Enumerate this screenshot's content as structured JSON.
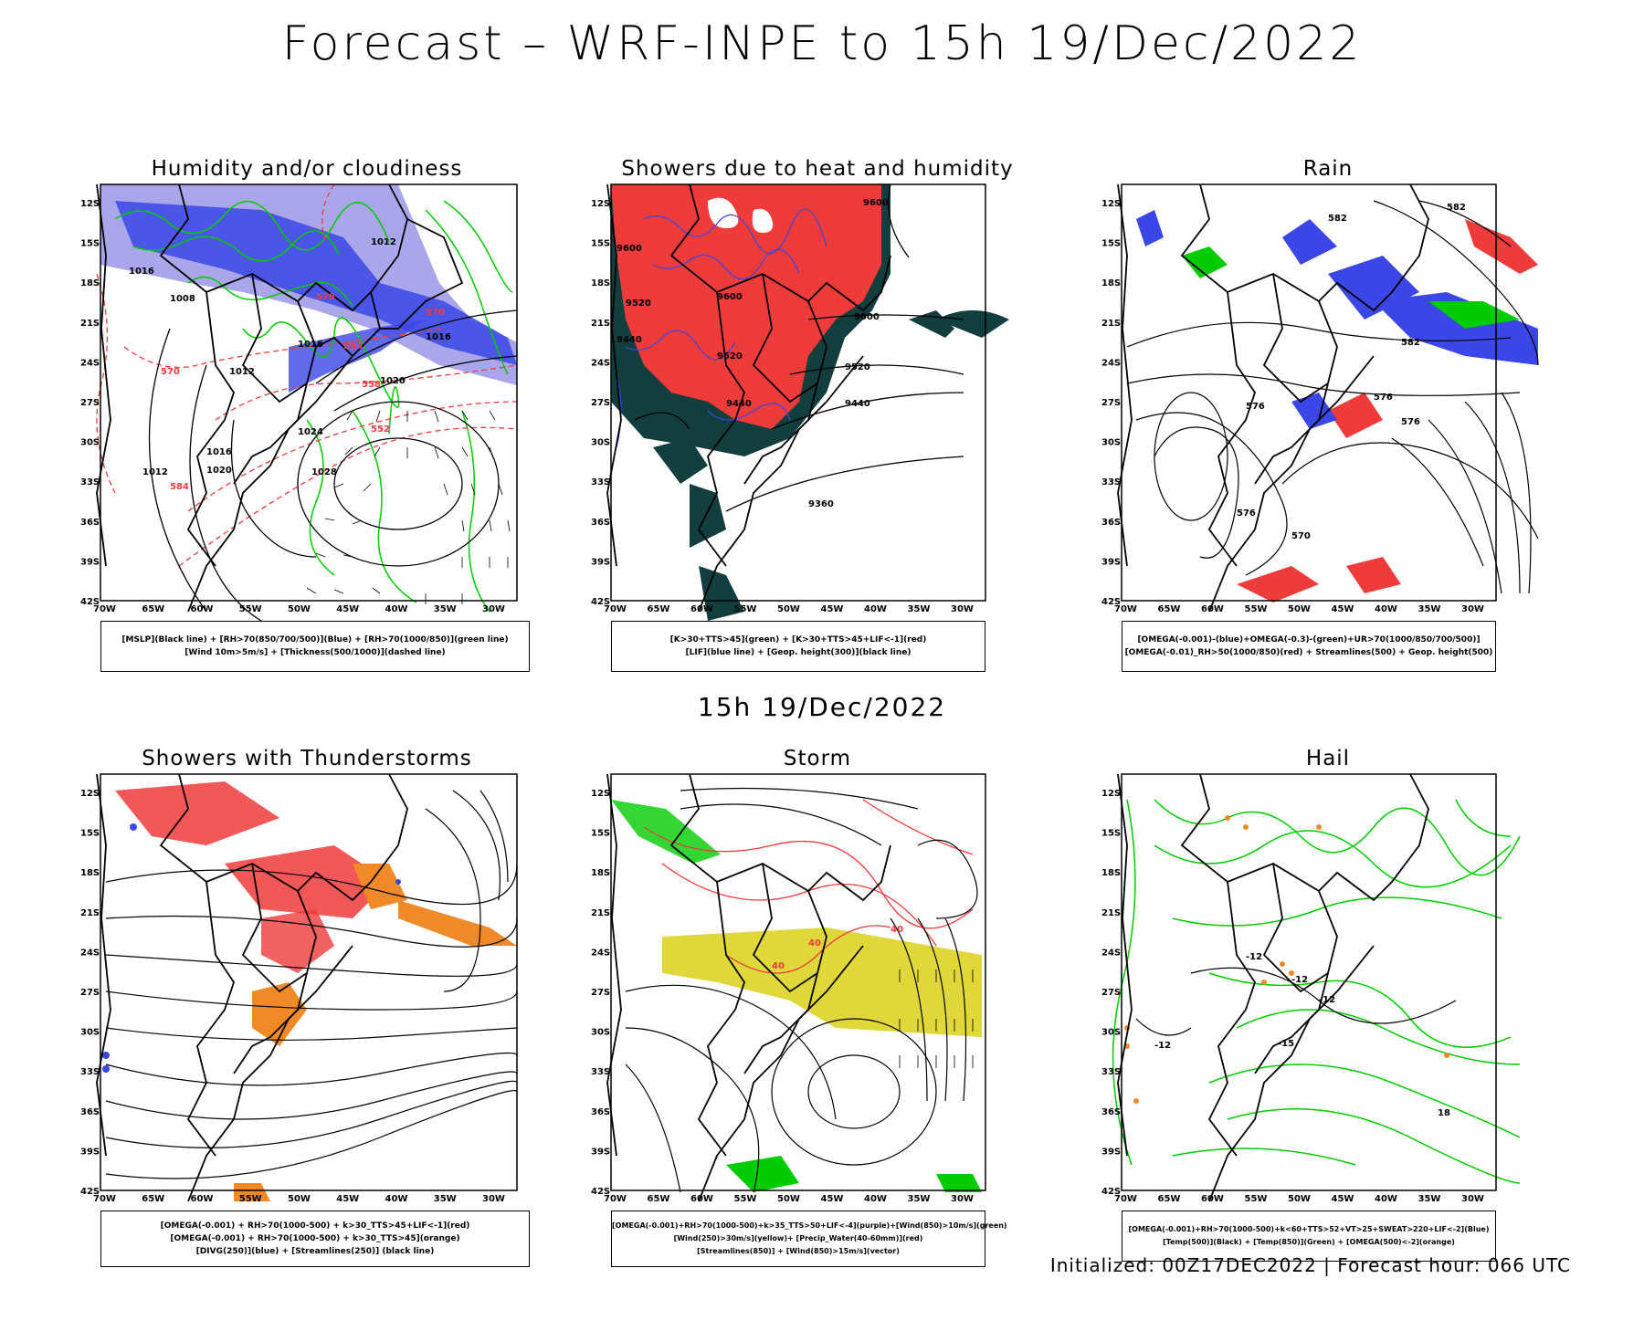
{
  "header": {
    "title": "Forecast – WRF-INPE to 15h 19/Dec/2022"
  },
  "mid_header": {
    "title": "15h 19/Dec/2022"
  },
  "footer": {
    "text": "Initialized: 00Z17DEC2022 | Forecast hour: 066 UTC"
  },
  "axes": {
    "lat_labels": [
      "12S",
      "15S",
      "18S",
      "21S",
      "24S",
      "27S",
      "30S",
      "33S",
      "36S",
      "39S",
      "42S"
    ],
    "lon_labels": [
      "70W",
      "65W",
      "60W",
      "55W",
      "50W",
      "45W",
      "40W",
      "35W",
      "30W"
    ]
  },
  "colors": {
    "blue": "#3b46e6",
    "lightblue": "#a9a6ec",
    "green": "#00cc00",
    "red": "#f03b3b",
    "darkteal": "#123e3e",
    "orange": "#f08a28",
    "yellow": "#e0d73a"
  },
  "panels": [
    {
      "title": "Humidity and/or cloudiness",
      "legend": [
        "[MSLP](Black line) + [RH>70(850/700/500)](Blue) + [RH>70(1000/850)](green line)",
        "[Wind 10m>5m/s] + [Thickness(500/1000)](dashed line)"
      ],
      "contour_labels": [
        "1012",
        "1016",
        "1008",
        "1016",
        "1012",
        "1016",
        "1020",
        "1024",
        "1028",
        "1012",
        "1016",
        "1020",
        "570",
        "576",
        "564",
        "558",
        "552",
        "570",
        "584"
      ]
    },
    {
      "title": "Showers due to heat and humidity",
      "legend": [
        "[K>30+TTS>45](green) + [K>30+TTS>45+LIF<-1](red)",
        "[LIF](blue line) + [Geop. height(300)](black line)"
      ],
      "contour_labels": [
        "9600",
        "9600",
        "9600",
        "9520",
        "9440",
        "9520",
        "9440",
        "9360",
        "9600",
        "9520",
        "9440"
      ]
    },
    {
      "title": "Rain",
      "legend": [
        "[OMEGA(-0.001)-(blue)+OMEGA(-0.3)-(green)+UR>70(1000/850/700/500)]",
        "[OMEGA(-0.01)_RH>50(1000/850)(red) + Streamlines(500) + Geop. height(500)"
      ],
      "contour_labels": [
        "582",
        "582",
        "576",
        "576",
        "576",
        "576",
        "570",
        "582"
      ]
    },
    {
      "title": "Showers with Thunderstorms",
      "legend": [
        "[OMEGA(-0.001) + RH>70(1000-500) + k>30_TTS>45+LIF<-1](red)",
        "[OMEGA(-0.001) + RH>70(1000-500) + k>30_TTS>45](orange)",
        "[DIVG(250)](blue) + [Streamlines(250)] (black line)"
      ],
      "contour_labels": []
    },
    {
      "title": "Storm",
      "legend": [
        "[OMEGA(-0.001)+RH>70(1000-500)+k>35_TTS>50+LIF<-4](purple)+[Wind(850)>10m/s](green)",
        "[Wind(250)>30m/s](yellow)+ [Precip_Water(40-60mm)](red)",
        "[Streamlines(850)] + [Wind(850)>15m/s](vector)"
      ],
      "contour_labels": [
        "40",
        "40",
        "40"
      ]
    },
    {
      "title": "Hail",
      "legend": [
        "[OMEGA(-0.001)+RH>70(1000-500)+k<60+TTS>52+VT>25+SWEAT>220+LIF<-2](Blue)",
        "[Temp(500)](Black) + [Temp(850)](Green) + [OMEGA(500)<-2](orange)"
      ],
      "contour_labels": [
        "-12",
        "-12",
        "-12",
        "-12",
        "-15",
        "18"
      ]
    }
  ]
}
